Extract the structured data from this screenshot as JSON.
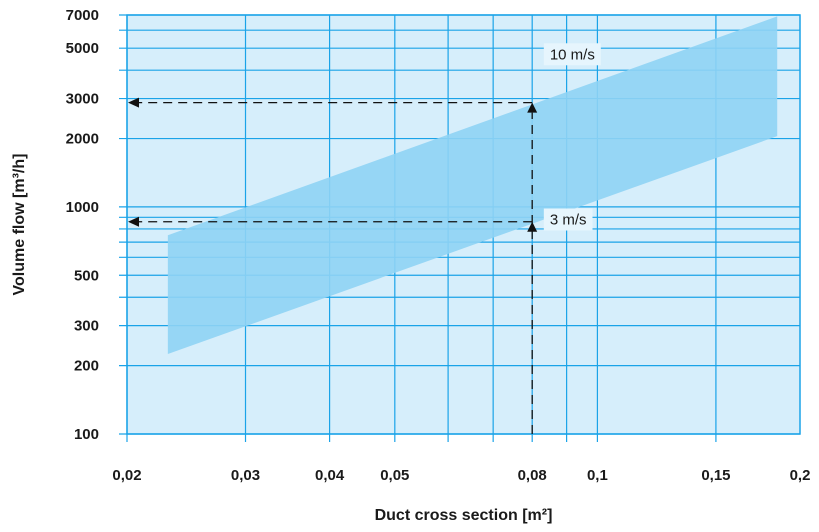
{
  "chart_data": {
    "type": "area",
    "xlabel": "Duct cross section [m²]",
    "ylabel": "Volume flow [m³/h]",
    "x_scale": "log",
    "y_scale": "log",
    "xlim": [
      0.02,
      0.2
    ],
    "ylim": [
      100,
      7000
    ],
    "x_ticks": [
      {
        "value": 0.02,
        "label": "0,02"
      },
      {
        "value": 0.03,
        "label": "0,03"
      },
      {
        "value": 0.04,
        "label": "0,04"
      },
      {
        "value": 0.05,
        "label": "0,05"
      },
      {
        "value": 0.08,
        "label": "0,08"
      },
      {
        "value": 0.1,
        "label": "0,1"
      },
      {
        "value": 0.15,
        "label": "0,15"
      },
      {
        "value": 0.2,
        "label": "0,2"
      }
    ],
    "x_grid": [
      0.02,
      0.03,
      0.04,
      0.05,
      0.06,
      0.07,
      0.08,
      0.09,
      0.1,
      0.15
    ],
    "y_ticks": [
      {
        "value": 100,
        "label": "100"
      },
      {
        "value": 200,
        "label": "200"
      },
      {
        "value": 300,
        "label": "300"
      },
      {
        "value": 500,
        "label": "500"
      },
      {
        "value": 1000,
        "label": "1000"
      },
      {
        "value": 2000,
        "label": "2000"
      },
      {
        "value": 3000,
        "label": "3000"
      },
      {
        "value": 5000,
        "label": "5000"
      },
      {
        "value": 7000,
        "label": "7000"
      }
    ],
    "y_grid": [
      100,
      200,
      300,
      400,
      500,
      600,
      700,
      800,
      900,
      1000,
      2000,
      3000,
      4000,
      5000,
      6000,
      7000
    ],
    "grid": true,
    "band": {
      "x": [
        0.023,
        0.185
      ],
      "upper": [
        750,
        6900
      ],
      "lower": [
        225,
        2050
      ],
      "color": "#8fd3f4"
    },
    "speed_labels": [
      {
        "text": "10 m/s",
        "x": 0.081,
        "y": 4700
      },
      {
        "text": "3 m/s",
        "x": 0.081,
        "y": 880
      }
    ],
    "example": {
      "x": 0.08,
      "points": [
        2880,
        860
      ],
      "arrow_y_targets": [
        2880,
        860
      ]
    },
    "colors": {
      "plot_background": "#d6eefb",
      "grid": "#1aa3e8",
      "band": "#8fd3f4",
      "arrows": "#111111"
    }
  }
}
